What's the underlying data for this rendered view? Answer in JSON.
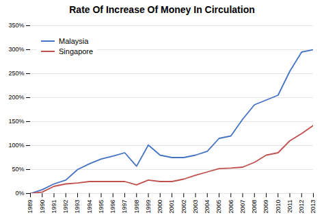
{
  "chart_data": {
    "type": "line",
    "title": "Rate Of Increase Of Money In Circulation",
    "x": [
      1989,
      1990,
      1991,
      1992,
      1993,
      1994,
      1995,
      1996,
      1997,
      1998,
      1999,
      2000,
      2001,
      2002,
      2003,
      2004,
      2005,
      2006,
      2007,
      2008,
      2009,
      2010,
      2011,
      2012,
      2013
    ],
    "series": [
      {
        "name": "Malaysia",
        "color": "#4472C4",
        "values": [
          0,
          8,
          20,
          28,
          50,
          62,
          72,
          78,
          85,
          57,
          101,
          80,
          75,
          75,
          80,
          88,
          115,
          120,
          155,
          185,
          195,
          205,
          255,
          295,
          300
        ]
      },
      {
        "name": "Singapore",
        "color": "#C0504D",
        "values": [
          0,
          3,
          15,
          20,
          22,
          25,
          25,
          25,
          25,
          18,
          28,
          25,
          25,
          30,
          38,
          45,
          52,
          53,
          55,
          65,
          80,
          85,
          110,
          125,
          142
        ]
      }
    ],
    "xlim": [
      1989,
      2013
    ],
    "xticks": [
      1989,
      1990,
      1991,
      1992,
      1993,
      1994,
      1995,
      1996,
      1997,
      1998,
      1999,
      2000,
      2001,
      2002,
      2003,
      2004,
      2005,
      2006,
      2007,
      2008,
      2009,
      2010,
      2011,
      2012,
      2013
    ],
    "ylim": [
      0,
      350
    ],
    "yticks": [
      {
        "value": 0,
        "label": "0%"
      },
      {
        "value": 50,
        "label": "50%"
      },
      {
        "value": 100,
        "label": "100%"
      },
      {
        "value": 150,
        "label": "150%"
      },
      {
        "value": 200,
        "label": "200%"
      },
      {
        "value": 250,
        "label": "250%"
      },
      {
        "value": 300,
        "label": "300%"
      },
      {
        "value": 350,
        "label": "350%"
      }
    ],
    "grid": true,
    "legend": "upper left"
  }
}
